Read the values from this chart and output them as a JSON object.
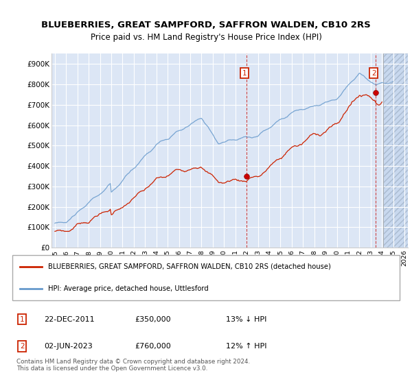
{
  "title": "BLUEBERRIES, GREAT SAMPFORD, SAFFRON WALDEN, CB10 2RS",
  "subtitle": "Price paid vs. HM Land Registry's House Price Index (HPI)",
  "hpi_line_color": "#6699cc",
  "price_line_color": "#cc2200",
  "marker_color": "#cc0000",
  "annotation_box_color": "#cc2200",
  "legend_label_price": "BLUEBERRIES, GREAT SAMPFORD, SAFFRON WALDEN, CB10 2RS (detached house)",
  "legend_label_hpi": "HPI: Average price, detached house, Uttlesford",
  "annotation1_date": "22-DEC-2011",
  "annotation1_price": "£350,000",
  "annotation1_pct": "13% ↓ HPI",
  "annotation2_date": "02-JUN-2023",
  "annotation2_price": "£760,000",
  "annotation2_pct": "12% ↑ HPI",
  "footer": "Contains HM Land Registry data © Crown copyright and database right 2024.\nThis data is licensed under the Open Government Licence v3.0.",
  "xmin": 1994.7,
  "xmax": 2026.3,
  "ymin": 0,
  "ymax": 950000,
  "yticks": [
    0,
    100000,
    200000,
    300000,
    400000,
    500000,
    600000,
    700000,
    800000,
    900000
  ],
  "ytick_labels": [
    "£0",
    "£100K",
    "£200K",
    "£300K",
    "£400K",
    "£500K",
    "£600K",
    "£700K",
    "£800K",
    "£900K"
  ],
  "xticks": [
    1995,
    1996,
    1997,
    1998,
    1999,
    2000,
    2001,
    2002,
    2003,
    2004,
    2005,
    2006,
    2007,
    2008,
    2009,
    2010,
    2011,
    2012,
    2013,
    2014,
    2015,
    2016,
    2017,
    2018,
    2019,
    2020,
    2021,
    2022,
    2023,
    2024,
    2025,
    2026
  ],
  "sale1_year": 2011.97,
  "sale1_value": 350000,
  "sale2_year": 2023.42,
  "sale2_value": 760000,
  "hatch_start": 2024.08,
  "plot_bg_color": "#dce6f5",
  "hatch_bg_color": "#c8d8ee"
}
